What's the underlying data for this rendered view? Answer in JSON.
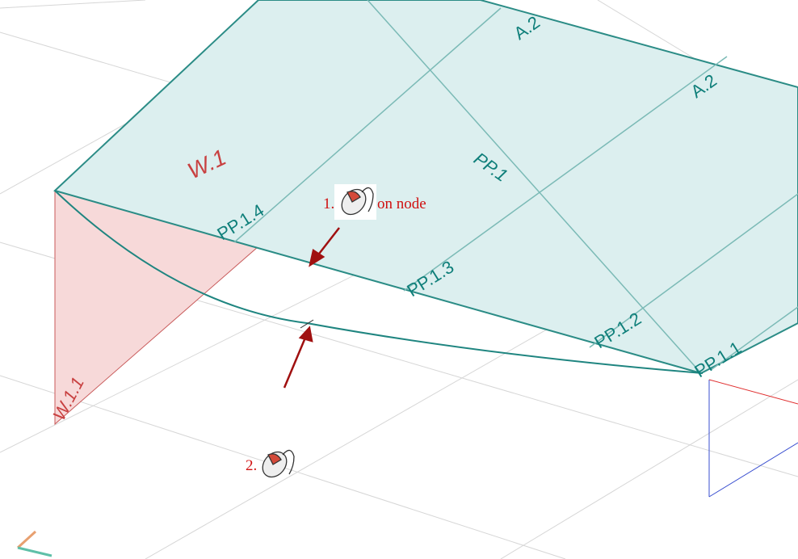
{
  "labels": {
    "wall": "W.1",
    "wall_edge": "W.1.1",
    "slab": "PP.1",
    "edges": [
      "PP.1.4",
      "PP.1.3",
      "PP.1.2",
      "PP.1.1"
    ],
    "axes": [
      "A.2",
      "A.2"
    ]
  },
  "steps": [
    {
      "number": "1.",
      "text": "on node"
    },
    {
      "number": "2."
    }
  ]
}
